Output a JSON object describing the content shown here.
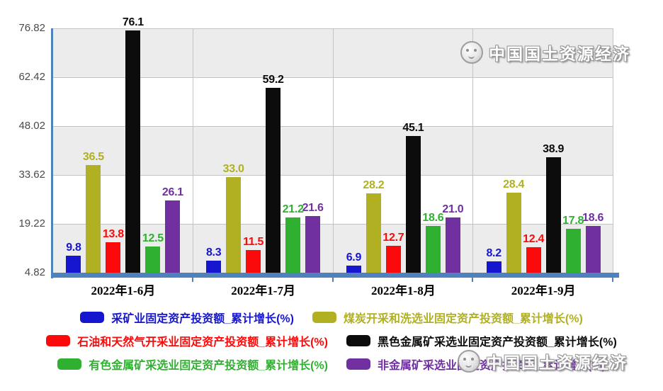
{
  "chart_data": {
    "type": "bar",
    "title": "",
    "categories": [
      "2022年1-6月",
      "2022年1-7月",
      "2022年1-8月",
      "2022年1-9月"
    ],
    "series": [
      {
        "name": "采矿业固定资产投资额_累计增长(%)",
        "color": "#1616d1",
        "values": [
          9.8,
          8.3,
          6.9,
          8.2
        ]
      },
      {
        "name": "煤炭开采和洗选业固定资产投资额_累计增长(%)",
        "color": "#b0b022",
        "values": [
          36.5,
          33.0,
          28.2,
          28.4
        ]
      },
      {
        "name": "石油和天然气开采业固定资产投资额_累计增长(%)",
        "color": "#fa0a0a",
        "values": [
          13.8,
          11.5,
          12.7,
          12.4
        ]
      },
      {
        "name": "黑色金属矿采选业固定资产投资额_累计增长(%)",
        "color": "#0c0c0c",
        "values": [
          76.1,
          59.2,
          45.1,
          38.9
        ]
      },
      {
        "name": "有色金属矿采选业固定资产投资额_累计增长(%)",
        "color": "#30b030",
        "values": [
          12.5,
          21.2,
          18.6,
          17.8
        ]
      },
      {
        "name": "非金属矿采选业固定资产投资额_累计增长(%)",
        "color": "#7030a0",
        "values": [
          26.1,
          21.6,
          21.0,
          18.6
        ]
      }
    ],
    "y_ticks": [
      4.82,
      19.22,
      33.62,
      48.02,
      62.42,
      76.82
    ],
    "ylim": [
      4.82,
      76.82
    ],
    "xlabel": "",
    "ylabel": "",
    "grid": true,
    "legend_position": "bottom"
  },
  "colors": {
    "axis": "#4f81bd",
    "gridline": "#c3c3c3",
    "band_gray": "#ececec",
    "band_white": "#ffffff"
  },
  "watermark": {
    "text": "中国国土资源经济"
  }
}
